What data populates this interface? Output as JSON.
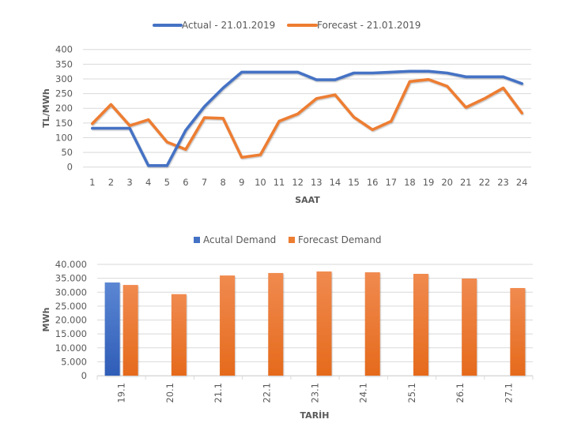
{
  "colors": {
    "actual": "#4472C4",
    "forecast": "#ED7D31",
    "grid": "#D9D9D9",
    "text": "#595959"
  },
  "chart_data": [
    {
      "type": "line",
      "title": "",
      "legend": [
        "Actual - 21.01.2019",
        "Forecast - 21.01.2019"
      ],
      "legend_position": "top",
      "xlabel": "SAAT",
      "ylabel": "TL/MWh",
      "ylim": [
        0,
        400
      ],
      "yticks": [
        "0",
        "50",
        "100",
        "150",
        "200",
        "250",
        "300",
        "350",
        "400"
      ],
      "ytick_values": [
        0,
        50,
        100,
        150,
        200,
        250,
        300,
        350,
        400
      ],
      "grid": true,
      "x": [
        "1",
        "2",
        "3",
        "4",
        "5",
        "6",
        "7",
        "8",
        "9",
        "10",
        "11",
        "12",
        "13",
        "14",
        "15",
        "16",
        "17",
        "18",
        "19",
        "20",
        "21",
        "22",
        "23",
        "24"
      ],
      "series": [
        {
          "name": "Actual - 21.01.2019",
          "color": "#4472C4",
          "values": [
            132,
            132,
            132,
            5,
            5,
            125,
            206,
            269,
            323,
            323,
            323,
            323,
            297,
            297,
            320,
            320,
            323,
            326,
            326,
            320,
            307,
            307,
            307,
            284
          ]
        },
        {
          "name": "Forecast - 21.01.2019",
          "color": "#ED7D31",
          "values": [
            148,
            213,
            141,
            161,
            85,
            60,
            168,
            166,
            33,
            42,
            156,
            181,
            233,
            246,
            170,
            127,
            156,
            291,
            298,
            275,
            203,
            233,
            269,
            184
          ]
        }
      ]
    },
    {
      "type": "bar",
      "title": "",
      "legend": [
        "Acutal Demand",
        "Forecast Demand"
      ],
      "legend_position": "top",
      "xlabel": "TARİH",
      "ylabel": "MWh",
      "ylim": [
        0,
        40000
      ],
      "yticks": [
        "0",
        "5.000",
        "10.000",
        "15.000",
        "20.000",
        "25.000",
        "30.000",
        "35.000",
        "40.000"
      ],
      "ytick_values": [
        0,
        5000,
        10000,
        15000,
        20000,
        25000,
        30000,
        35000,
        40000
      ],
      "grid": true,
      "categories": [
        "19.1",
        "20.1",
        "21.1",
        "22.1",
        "23.1",
        "24.1",
        "25.1",
        "26.1",
        "27.1"
      ],
      "series": [
        {
          "name": "Acutal Demand",
          "color": "#4472C4",
          "values": [
            33500,
            null,
            null,
            null,
            null,
            null,
            null,
            null,
            null
          ]
        },
        {
          "name": "Forecast Demand",
          "color": "#ED7D31",
          "values": [
            32600,
            29300,
            36000,
            36900,
            37450,
            37150,
            36600,
            34900,
            31500
          ]
        }
      ]
    }
  ]
}
